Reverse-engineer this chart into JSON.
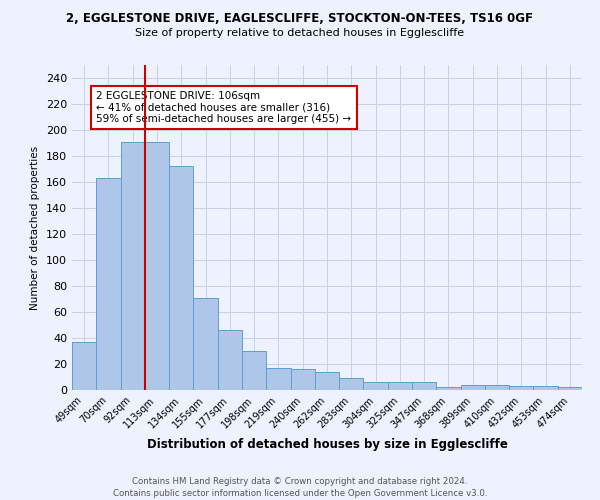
{
  "title1": "2, EGGLESTONE DRIVE, EAGLESCLIFFE, STOCKTON-ON-TEES, TS16 0GF",
  "title2": "Size of property relative to detached houses in Egglescliffe",
  "xlabel": "Distribution of detached houses by size in Egglescliffe",
  "ylabel": "Number of detached properties",
  "categories": [
    "49sqm",
    "70sqm",
    "92sqm",
    "113sqm",
    "134sqm",
    "155sqm",
    "177sqm",
    "198sqm",
    "219sqm",
    "240sqm",
    "262sqm",
    "283sqm",
    "304sqm",
    "325sqm",
    "347sqm",
    "368sqm",
    "389sqm",
    "410sqm",
    "432sqm",
    "453sqm",
    "474sqm"
  ],
  "values": [
    37,
    163,
    191,
    191,
    172,
    71,
    46,
    30,
    17,
    16,
    14,
    9,
    6,
    6,
    6,
    2,
    4,
    4,
    3,
    3,
    2
  ],
  "bar_color": "#aec6e8",
  "bar_edge_color": "#5a9fd4",
  "vline_x": 2.5,
  "vline_color": "#cc0000",
  "annotation_text": "2 EGGLESTONE DRIVE: 106sqm\n← 41% of detached houses are smaller (316)\n59% of semi-detached houses are larger (455) →",
  "annotation_box_color": "#ffffff",
  "annotation_box_edge_color": "#cc0000",
  "ylim": [
    0,
    250
  ],
  "yticks": [
    0,
    20,
    40,
    60,
    80,
    100,
    120,
    140,
    160,
    180,
    200,
    220,
    240
  ],
  "footer1": "Contains HM Land Registry data © Crown copyright and database right 2024.",
  "footer2": "Contains public sector information licensed under the Open Government Licence v3.0.",
  "background_color": "#eef2ff",
  "grid_color": "#c8d0e8"
}
